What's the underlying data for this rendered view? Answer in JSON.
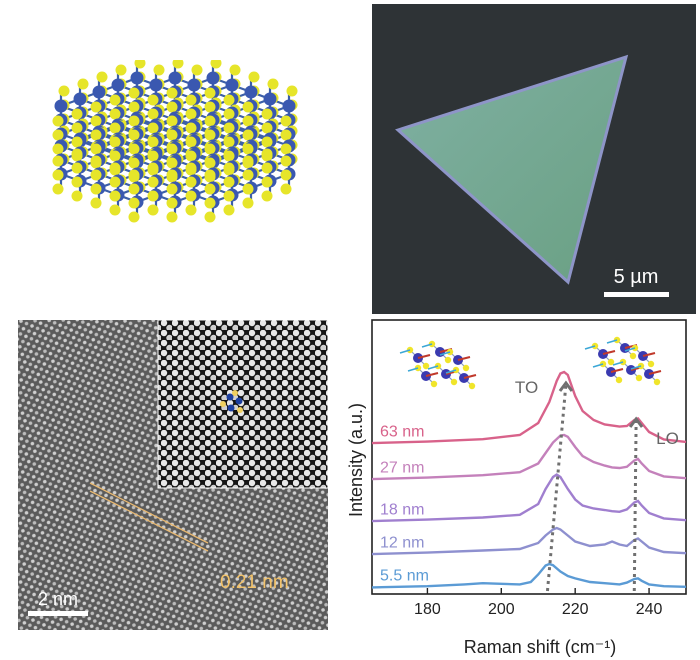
{
  "optical": {
    "scalebar": "5 µm",
    "colors": {
      "background": "#2e3336",
      "flake": "#6fa58c"
    }
  },
  "hrtem": {
    "scalebar": "2 nm",
    "d_spacing": "0.21 nm",
    "colors": {
      "spacing": "#f2c26a"
    }
  },
  "chart_data": {
    "type": "line",
    "xlabel": "Raman shift (cm⁻¹)",
    "ylabel": "Intensity (a.u.)",
    "xlim": [
      165,
      250
    ],
    "xticks": [
      180,
      200,
      220,
      240
    ],
    "mode_labels": {
      "TO": "TO",
      "LO": "LO"
    },
    "series": [
      {
        "name": "5.5 nm",
        "color": "#5b9bd5",
        "offset": 0,
        "x": [
          165,
          180,
          190,
          195,
          200,
          205,
          208,
          210,
          212,
          213,
          214,
          216,
          218,
          220,
          224,
          228,
          232,
          234,
          236,
          237,
          238,
          240,
          244,
          250
        ],
        "y": [
          0.2,
          0.6,
          1.2,
          1.6,
          1.4,
          1.2,
          2.0,
          4.5,
          7.5,
          8.0,
          7.6,
          5.5,
          4.0,
          3.2,
          2.0,
          1.6,
          1.2,
          1.8,
          3.0,
          3.2,
          2.4,
          1.2,
          0.6,
          0.4
        ]
      },
      {
        "name": "12 nm",
        "color": "#8e90cf",
        "offset": 11,
        "x": [
          165,
          180,
          195,
          205,
          210,
          212,
          214,
          215,
          216,
          218,
          220,
          224,
          228,
          230,
          232,
          234,
          236,
          237,
          238,
          240,
          244,
          250
        ],
        "y": [
          0.3,
          0.8,
          1.5,
          2.0,
          4.0,
          6.5,
          8.5,
          9.0,
          8.5,
          6.5,
          4.5,
          3.0,
          3.5,
          4.5,
          3.5,
          3.0,
          5.0,
          5.5,
          4.5,
          2.5,
          1.0,
          0.6
        ]
      },
      {
        "name": "18 nm",
        "color": "#a07fcf",
        "offset": 22,
        "x": [
          165,
          180,
          195,
          205,
          210,
          212,
          214,
          215,
          216,
          218,
          220,
          222,
          225,
          228,
          230,
          232,
          234,
          236,
          237,
          238,
          240,
          244,
          250
        ],
        "y": [
          0.3,
          0.8,
          1.5,
          2.4,
          6.0,
          11.0,
          15.0,
          15.8,
          15.0,
          11.0,
          7.5,
          5.5,
          4.5,
          4.0,
          3.6,
          3.4,
          4.2,
          6.5,
          7.0,
          5.5,
          3.0,
          1.2,
          0.6
        ]
      },
      {
        "name": "27 nm",
        "color": "#c481bb",
        "offset": 36,
        "x": [
          165,
          180,
          195,
          205,
          210,
          212,
          214,
          216,
          217,
          218,
          220,
          222,
          225,
          228,
          230,
          232,
          234,
          236,
          237,
          238,
          240,
          244,
          250
        ],
        "y": [
          0.3,
          0.8,
          1.6,
          2.6,
          5.5,
          9.0,
          12.5,
          14.8,
          15.0,
          14.4,
          11.0,
          8.0,
          6.0,
          4.8,
          4.2,
          4.0,
          4.4,
          6.5,
          7.0,
          5.5,
          3.0,
          1.2,
          0.6
        ]
      },
      {
        "name": "63 nm",
        "color": "#d8628a",
        "offset": 48,
        "x": [
          165,
          180,
          195,
          205,
          210,
          213,
          215,
          216,
          217,
          218,
          220,
          222,
          225,
          228,
          232,
          234,
          236,
          237,
          238,
          240,
          244,
          250
        ],
        "y": [
          0.3,
          0.8,
          1.6,
          3.0,
          7.0,
          14.0,
          21.0,
          23.5,
          24.0,
          23.0,
          16.0,
          11.0,
          8.0,
          6.5,
          5.8,
          6.0,
          8.0,
          8.5,
          7.0,
          4.0,
          1.5,
          0.7
        ]
      }
    ],
    "guides": [
      {
        "x": [
          212.5,
          217.5
        ],
        "label": "TO"
      },
      {
        "x": [
          236.0,
          236.5
        ],
        "label": "LO"
      }
    ]
  }
}
